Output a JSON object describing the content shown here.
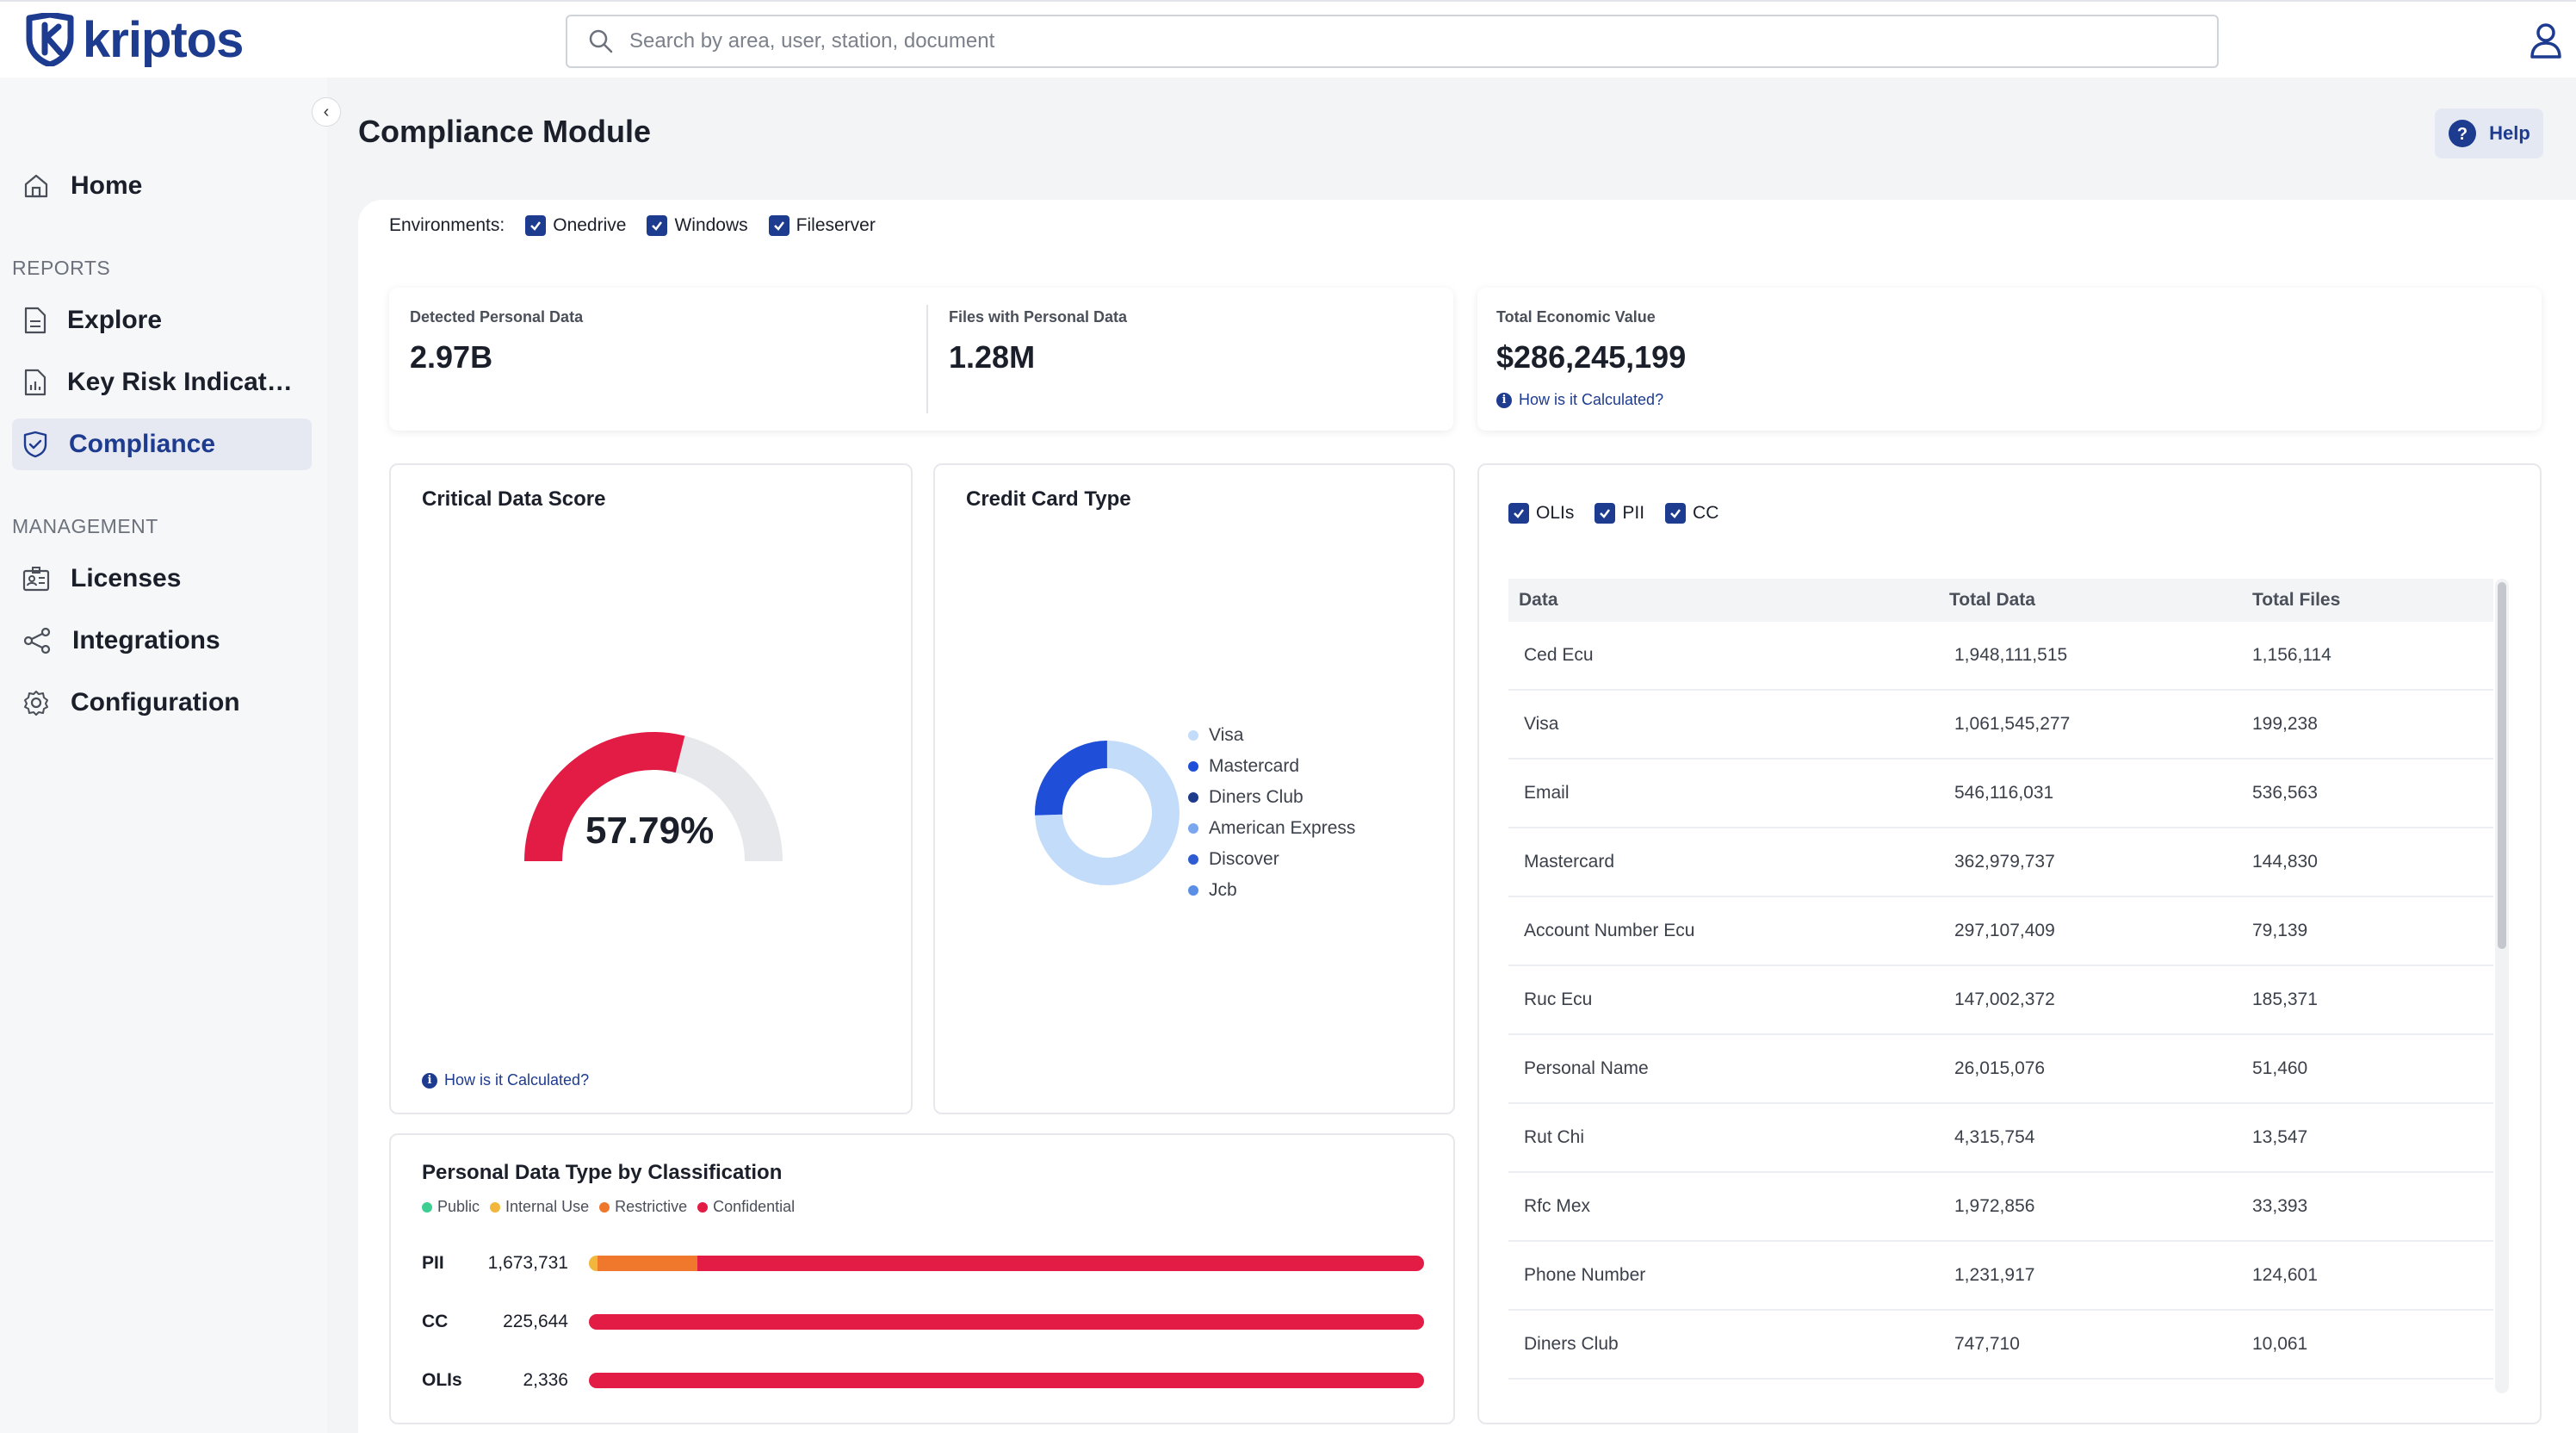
{
  "app": {
    "brand": "kriptos"
  },
  "search": {
    "placeholder": "Search by area, user, station, document"
  },
  "sidebar": {
    "items_top": [
      {
        "label": "Home"
      }
    ],
    "reports_title": "REPORTS",
    "reports": [
      {
        "label": "Explore"
      },
      {
        "label": "Key Risk Indicators"
      },
      {
        "label": "Compliance"
      }
    ],
    "management_title": "MANAGEMENT",
    "management": [
      {
        "label": "Licenses"
      },
      {
        "label": "Integrations"
      },
      {
        "label": "Configuration"
      }
    ]
  },
  "page": {
    "title": "Compliance Module",
    "help_label": "Help"
  },
  "environments": {
    "label": "Environments:",
    "options": [
      "Onedrive",
      "Windows",
      "Fileserver"
    ]
  },
  "kpis": {
    "detected_label": "Detected Personal Data",
    "detected_value": "2.97B",
    "files_label": "Files with Personal Data",
    "files_value": "1.28M",
    "economic_label": "Total Economic Value",
    "economic_value": "$286,245,199",
    "economic_link": "How is it Calculated?"
  },
  "critical_score": {
    "title": "Critical Data Score",
    "value_label": "57.79%",
    "value": 57.79,
    "link": "How is it Calculated?",
    "colors": {
      "fill": "#e31c45",
      "track": "#e6e8ec"
    }
  },
  "credit_card": {
    "title": "Credit Card Type",
    "legend": [
      {
        "label": "Visa",
        "color": "#c3dcf9"
      },
      {
        "label": "Mastercard",
        "color": "#1f4ed8"
      },
      {
        "label": "Diners Club",
        "color": "#1e3a8a"
      },
      {
        "label": "American Express",
        "color": "#7aa7ee"
      },
      {
        "label": "Discover",
        "color": "#2f5bd3"
      },
      {
        "label": "Jcb",
        "color": "#5b8fe6"
      }
    ]
  },
  "chart_data": {
    "type": "pie",
    "title": "Credit Card Type",
    "categories": [
      "Visa",
      "Mastercard",
      "Diners Club",
      "American Express",
      "Discover",
      "Jcb"
    ],
    "values": [
      1061545277,
      362979737,
      747710,
      0,
      0,
      0
    ]
  },
  "classification": {
    "title": "Personal Data Type by Classification",
    "legend": [
      {
        "label": "Public",
        "color": "#3ccf91"
      },
      {
        "label": "Internal Use",
        "color": "#f2b63d"
      },
      {
        "label": "Restrictive",
        "color": "#f0782d"
      },
      {
        "label": "Confidential",
        "color": "#e31c45"
      }
    ],
    "rows": [
      {
        "name": "PII",
        "value": "1,673,731",
        "segments": [
          0,
          1,
          12,
          87
        ]
      },
      {
        "name": "CC",
        "value": "225,644",
        "segments": [
          0,
          0,
          0,
          100
        ]
      },
      {
        "name": "OLIs",
        "value": "2,336",
        "segments": [
          0,
          0,
          0,
          100
        ]
      }
    ]
  },
  "table": {
    "filters": [
      "OLIs",
      "PII",
      "CC"
    ],
    "headers": [
      "Data",
      "Total Data",
      "Total Files"
    ],
    "rows": [
      [
        "Ced Ecu",
        "1,948,111,515",
        "1,156,114"
      ],
      [
        "Visa",
        "1,061,545,277",
        "199,238"
      ],
      [
        "Email",
        "546,116,031",
        "536,563"
      ],
      [
        "Mastercard",
        "362,979,737",
        "144,830"
      ],
      [
        "Account Number Ecu",
        "297,107,409",
        "79,139"
      ],
      [
        "Ruc Ecu",
        "147,002,372",
        "185,371"
      ],
      [
        "Personal Name",
        "26,015,076",
        "51,460"
      ],
      [
        "Rut Chi",
        "4,315,754",
        "13,547"
      ],
      [
        "Rfc Mex",
        "1,972,856",
        "33,393"
      ],
      [
        "Phone Number",
        "1,231,917",
        "124,601"
      ],
      [
        "Diners Club",
        "747,710",
        "10,061"
      ]
    ]
  }
}
